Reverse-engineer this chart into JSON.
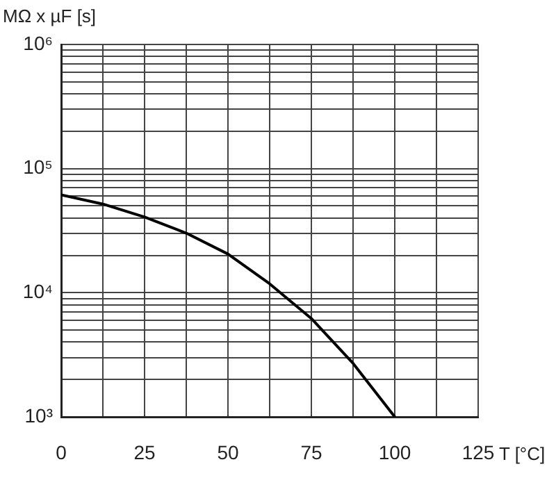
{
  "chart_data": {
    "type": "line",
    "xlabel": "T [°C]",
    "ylabel": "MΩ x µF [s]",
    "x": [
      0,
      12.5,
      25,
      37.5,
      50,
      62.5,
      75,
      87.5,
      100
    ],
    "series": [
      {
        "color": "#000000",
        "values": [
          61500,
          51800,
          40700,
          30200,
          20500,
          11800,
          6200,
          2700,
          1000
        ]
      }
    ],
    "xlim": [
      0,
      125
    ],
    "xticks": [
      0,
      {
        "value": 12.5,
        "label": null
      },
      25,
      {
        "value": 37.5,
        "label": null
      },
      50,
      {
        "value": 62.5,
        "label": null
      },
      75,
      {
        "value": 87.5,
        "label": null
      },
      100,
      {
        "value": 112.5,
        "label": null
      },
      125
    ],
    "ylim": [
      1000,
      1000000
    ],
    "yticks": [
      {
        "value": 1000,
        "label": "10³"
      },
      {
        "value": 2000,
        "label": null
      },
      {
        "value": 3000,
        "label": null
      },
      {
        "value": 4000,
        "label": null
      },
      {
        "value": 5000,
        "label": null
      },
      {
        "value": 6000,
        "label": null
      },
      {
        "value": 7000,
        "label": null
      },
      {
        "value": 8000,
        "label": null
      },
      {
        "value": 9000,
        "label": null
      },
      {
        "value": 10000,
        "label": "10⁴"
      },
      {
        "value": 20000,
        "label": null
      },
      {
        "value": 30000,
        "label": null
      },
      {
        "value": 40000,
        "label": null
      },
      {
        "value": 50000,
        "label": null
      },
      {
        "value": 60000,
        "label": null
      },
      {
        "value": 70000,
        "label": null
      },
      {
        "value": 80000,
        "label": null
      },
      {
        "value": 90000,
        "label": null
      },
      {
        "value": 100000,
        "label": "10⁵"
      },
      {
        "value": 200000,
        "label": null
      },
      {
        "value": 300000,
        "label": null
      },
      {
        "value": 400000,
        "label": null
      },
      {
        "value": 500000,
        "label": null
      },
      {
        "value": 600000,
        "label": null
      },
      {
        "value": 700000,
        "label": null
      },
      {
        "value": 800000,
        "label": null
      },
      {
        "value": 900000,
        "label": null
      },
      {
        "value": 1000000,
        "label": "10⁶"
      }
    ],
    "log": true,
    "grid": true,
    "legend": false,
    "marker": "none",
    "line_style": "solid"
  }
}
